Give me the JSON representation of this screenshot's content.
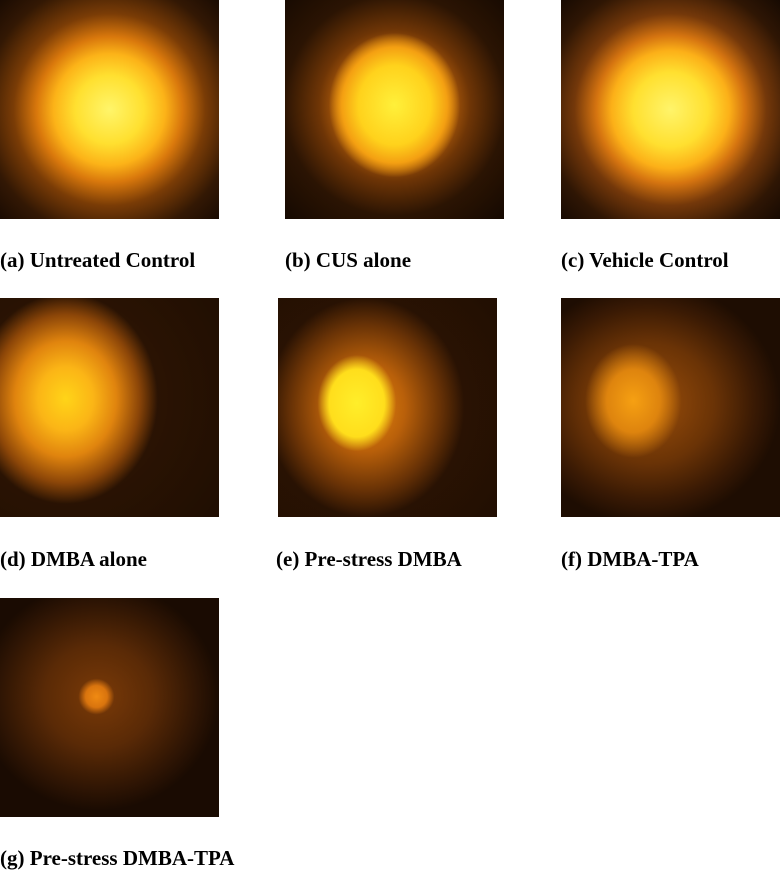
{
  "figure": {
    "panels": [
      {
        "caption": "(a) Untreated Control"
      },
      {
        "caption": "(b) CUS alone"
      },
      {
        "caption": "(c) Vehicle Control"
      },
      {
        "caption": "(d) DMBA alone"
      },
      {
        "caption": "(e) Pre-stress DMBA"
      },
      {
        "caption": "(f) DMBA-TPA"
      },
      {
        "caption": "(g) Pre-stress DMBA-TPA"
      }
    ]
  }
}
